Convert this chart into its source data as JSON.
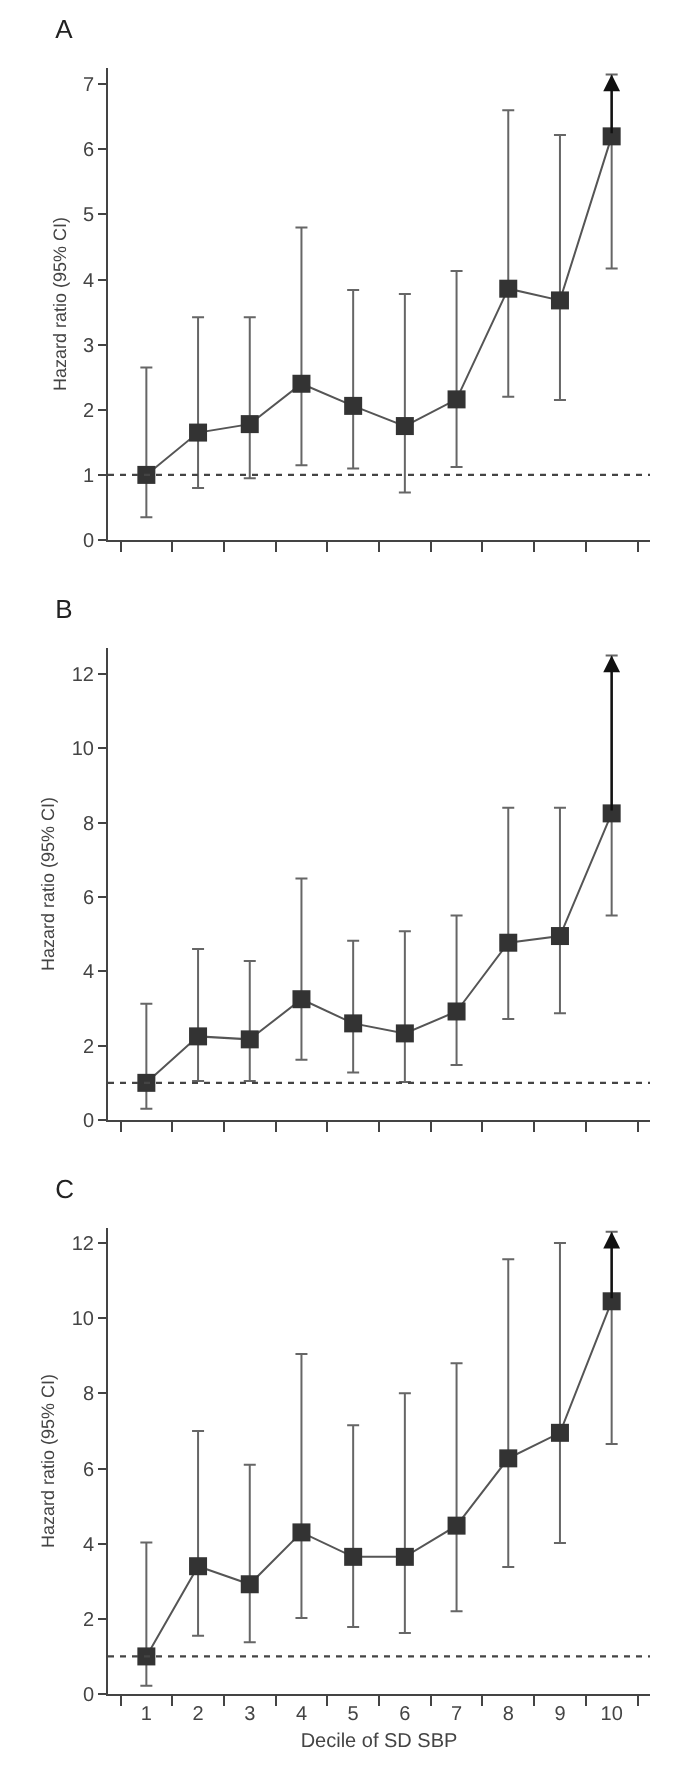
{
  "chart_data": [
    {
      "type": "line",
      "title": "A",
      "ylabel": "Hazard ratio (95% CI)",
      "categories": [
        "1",
        "2",
        "3",
        "4",
        "5",
        "6",
        "7",
        "8",
        "9",
        "10"
      ],
      "series": [
        {
          "color": "#333333",
          "values": [
            1.0,
            1.65,
            1.78,
            2.4,
            2.06,
            1.75,
            2.16,
            3.86,
            3.68,
            6.2
          ],
          "errors": [
            [
              0.35,
              2.65
            ],
            [
              0.8,
              3.42
            ],
            [
              0.95,
              3.42
            ],
            [
              1.15,
              4.8
            ],
            [
              1.1,
              3.84
            ],
            [
              0.73,
              3.78
            ],
            [
              1.12,
              4.13
            ],
            [
              2.2,
              6.6
            ],
            [
              2.15,
              6.22
            ],
            [
              4.17,
              7.15
            ]
          ]
        }
      ],
      "ylim": [
        0,
        7.25
      ],
      "yticks": [
        0,
        1,
        2,
        3,
        4,
        5,
        6,
        7
      ],
      "ref_lines": [
        {
          "axis": "y",
          "value": 1,
          "line_style": "dotted"
        }
      ],
      "marker": "square",
      "grid": false,
      "tick_labels": "y"
    },
    {
      "type": "line",
      "title": "B",
      "ylabel": "Hazard ratio (95% CI)",
      "categories": [
        "1",
        "2",
        "3",
        "4",
        "5",
        "6",
        "7",
        "8",
        "9",
        "10"
      ],
      "series": [
        {
          "color": "#333333",
          "values": [
            1.0,
            2.25,
            2.17,
            3.25,
            2.6,
            2.33,
            2.92,
            4.77,
            4.95,
            8.25
          ],
          "errors": [
            [
              0.3,
              3.13
            ],
            [
              1.05,
              4.6
            ],
            [
              1.05,
              4.28
            ],
            [
              1.62,
              6.5
            ],
            [
              1.28,
              4.82
            ],
            [
              1.02,
              5.08
            ],
            [
              1.48,
              5.5
            ],
            [
              2.72,
              8.4
            ],
            [
              2.87,
              8.4
            ],
            [
              5.5,
              12.5
            ]
          ]
        }
      ],
      "ylim": [
        0,
        12.7
      ],
      "yticks": [
        0,
        2,
        4,
        6,
        8,
        10,
        12
      ],
      "ref_lines": [
        {
          "axis": "y",
          "value": 1,
          "line_style": "dotted"
        }
      ],
      "marker": "square",
      "grid": false,
      "tick_labels": "y"
    },
    {
      "type": "line",
      "title": "C",
      "ylabel": "Hazard ratio (95% CI)",
      "xlabel": "Decile of SD SBP",
      "categories": [
        "1",
        "2",
        "3",
        "4",
        "5",
        "6",
        "7",
        "8",
        "9",
        "10"
      ],
      "series": [
        {
          "color": "#333333",
          "values": [
            1.0,
            3.4,
            2.92,
            4.3,
            3.65,
            3.65,
            4.48,
            6.27,
            6.95,
            10.45
          ],
          "errors": [
            [
              0.22,
              4.03
            ],
            [
              1.55,
              7.0
            ],
            [
              1.38,
              6.1
            ],
            [
              2.02,
              9.05
            ],
            [
              1.78,
              7.15
            ],
            [
              1.62,
              8.0
            ],
            [
              2.2,
              8.8
            ],
            [
              3.38,
              11.57
            ],
            [
              4.02,
              12.0
            ],
            [
              6.65,
              12.3
            ]
          ]
        }
      ],
      "ylim": [
        0,
        12.4
      ],
      "yticks": [
        0,
        2,
        4,
        6,
        8,
        10,
        12
      ],
      "ref_lines": [
        {
          "axis": "y",
          "value": 1,
          "line_style": "dotted"
        }
      ],
      "marker": "square",
      "grid": false
    }
  ]
}
